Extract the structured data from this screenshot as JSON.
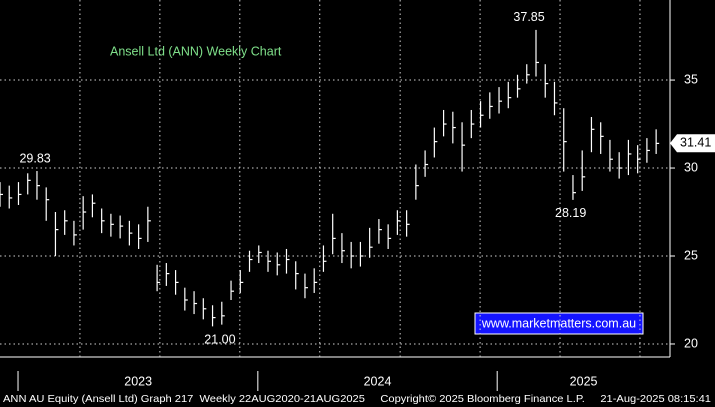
{
  "chart_data": {
    "type": "hlc",
    "title": "Ansell Ltd (ANN) Weekly Chart",
    "watermark": "www.marketmatters.com.au",
    "footer": "ANN AU Equity (Ansell Ltd) Graph 217  Weekly 22AUG2020-21AUG2025     Copyright© 2025 Bloomberg Finance L.P.     21-Aug-2025 08:15:41",
    "x": [
      0,
      2,
      4,
      6,
      8,
      10,
      12,
      14,
      16,
      18,
      20,
      22,
      24,
      26,
      28,
      30,
      32,
      34,
      36,
      38,
      40,
      42,
      44,
      46,
      48,
      50,
      52,
      54,
      56,
      58,
      60,
      62,
      64,
      66,
      68,
      70,
      72,
      74,
      76,
      78,
      80,
      82,
      84,
      86,
      88,
      90,
      92,
      94,
      96,
      98,
      100,
      102,
      104,
      106,
      108,
      110,
      112,
      114,
      116,
      118,
      120,
      122,
      124,
      126,
      128,
      130,
      132,
      134,
      136,
      138,
      140,
      142
    ],
    "series": [
      {
        "color": "#ffffff",
        "high": [
          29.2,
          29.0,
          29.2,
          29.7,
          29.83,
          28.9,
          27.5,
          27.6,
          27.0,
          28.4,
          28.5,
          27.7,
          27.4,
          27.3,
          27.0,
          26.8,
          27.8,
          24.5,
          24.6,
          24.2,
          23.2,
          23.0,
          22.6,
          22.2,
          22.4,
          23.6,
          24.2,
          25.3,
          25.6,
          25.3,
          25.2,
          25.4,
          24.7,
          24.0,
          24.3,
          25.6,
          27.4,
          26.3,
          25.8,
          25.8,
          26.6,
          27.1,
          26.8,
          27.6,
          27.6,
          30.2,
          31.0,
          32.3,
          33.3,
          33.2,
          32.6,
          33.3,
          33.8,
          34.3,
          34.6,
          34.9,
          35.3,
          35.9,
          37.85,
          35.9,
          34.9,
          33.4,
          29.6,
          31.0,
          32.9,
          32.6,
          31.6,
          30.9,
          31.6,
          31.3,
          31.7,
          32.2
        ],
        "low": [
          27.8,
          27.7,
          27.9,
          28.5,
          28.2,
          27.0,
          25.0,
          26.2,
          25.6,
          26.5,
          27.2,
          26.3,
          26.1,
          26.0,
          25.6,
          25.4,
          25.8,
          23.0,
          23.3,
          22.8,
          21.9,
          21.7,
          21.4,
          21.0,
          21.1,
          22.5,
          22.9,
          24.1,
          24.6,
          24.1,
          23.9,
          24.0,
          23.1,
          22.6,
          22.9,
          24.1,
          25.1,
          24.6,
          24.3,
          24.4,
          24.9,
          25.7,
          25.4,
          26.2,
          26.1,
          28.2,
          29.5,
          30.6,
          31.8,
          31.4,
          29.8,
          31.7,
          32.3,
          32.8,
          33.1,
          33.4,
          34.0,
          34.8,
          35.2,
          34.0,
          33.0,
          29.8,
          28.19,
          28.7,
          30.9,
          30.8,
          29.8,
          29.4,
          29.6,
          29.7,
          30.3,
          30.8
        ],
        "values": [
          28.5,
          28.3,
          28.5,
          29.3,
          29.0,
          28.2,
          26.5,
          27.0,
          26.2,
          27.5,
          28.0,
          27.0,
          26.8,
          26.7,
          26.3,
          26.0,
          27.0,
          23.5,
          24.0,
          23.5,
          22.5,
          22.3,
          22.0,
          21.5,
          21.6,
          23.0,
          23.5,
          24.8,
          25.2,
          24.7,
          24.5,
          24.8,
          24.0,
          23.2,
          23.5,
          24.7,
          26.0,
          25.3,
          25.0,
          25.0,
          25.5,
          26.5,
          26.0,
          27.0,
          26.8,
          29.0,
          30.2,
          31.5,
          32.5,
          32.3,
          31.3,
          32.5,
          33.0,
          33.5,
          33.8,
          34.0,
          34.5,
          35.3,
          36.0,
          34.8,
          33.7,
          31.5,
          28.6,
          29.5,
          32.2,
          31.8,
          30.5,
          30.0,
          30.8,
          30.5,
          31.0,
          31.4
        ]
      }
    ],
    "annotations": [
      {
        "x": 7.6,
        "y": 29.83,
        "label": "29.83",
        "position": "above"
      },
      {
        "x": 47.6,
        "y": 21,
        "label": "21.00",
        "position": "below"
      },
      {
        "x": 114.5,
        "y": 37.85,
        "label": "37.85",
        "position": "above"
      },
      {
        "x": 123.5,
        "y": 28.19,
        "label": "28.19",
        "position": "below"
      }
    ],
    "last_price": 31.41,
    "xlim": [
      0,
      145
    ],
    "xticks": [
      {
        "value": 29.9,
        "label": "2023"
      },
      {
        "value": 81.7,
        "label": "2024"
      },
      {
        "value": 126.3,
        "label": "2025"
      }
    ],
    "year_ticks": [
      3.9,
      55.8,
      107.6
    ],
    "xgrid": [
      17.3,
      34.6,
      51.9,
      69.2,
      86.6,
      103.9,
      121.2,
      138.5
    ],
    "ylim": [
      19.26,
      39.55
    ],
    "yticks": [
      20,
      25,
      30,
      35
    ],
    "grid": true
  }
}
